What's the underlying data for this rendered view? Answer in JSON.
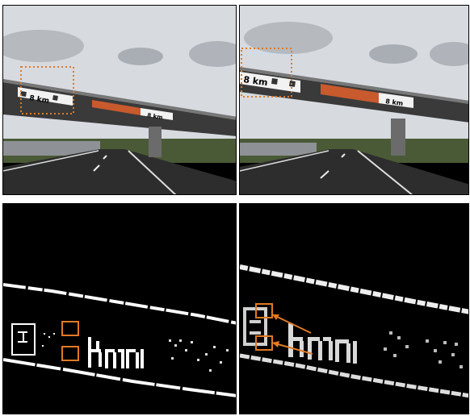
{
  "panels": {
    "top_left": {
      "sign_text_km_left": "8 km",
      "sign_text_km_right": "8 km"
    },
    "top_right": {
      "sign_text_km_left": "8 km",
      "sign_text_km_right": "8 km"
    }
  },
  "colors": {
    "highlight": "#e07a26",
    "sky": "#d7dbe0",
    "road": "#2d2d2d",
    "grass": "#4b5a36",
    "bridge": "#3a3a3a",
    "edge": "#ffffff",
    "background_dark": "#000000"
  }
}
